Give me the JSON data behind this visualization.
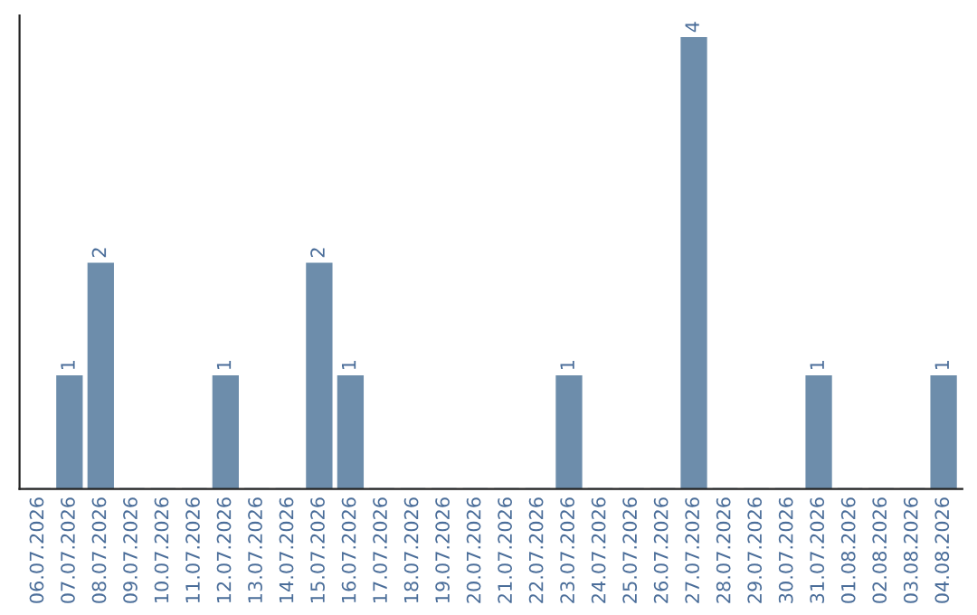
{
  "chart_data": {
    "type": "bar",
    "categories": [
      "06.07.2026",
      "07.07.2026",
      "08.07.2026",
      "09.07.2026",
      "10.07.2026",
      "11.07.2026",
      "12.07.2026",
      "13.07.2026",
      "14.07.2026",
      "15.07.2026",
      "16.07.2026",
      "17.07.2026",
      "18.07.2026",
      "19.07.2026",
      "20.07.2026",
      "21.07.2026",
      "22.07.2026",
      "23.07.2026",
      "24.07.2026",
      "25.07.2026",
      "26.07.2026",
      "27.07.2026",
      "28.07.2026",
      "29.07.2026",
      "30.07.2026",
      "31.07.2026",
      "01.08.2026",
      "02.08.2026",
      "03.08.2026",
      "04.08.2026"
    ],
    "values": [
      0,
      1,
      2,
      0,
      0,
      0,
      1,
      0,
      0,
      2,
      1,
      0,
      0,
      0,
      0,
      0,
      0,
      1,
      0,
      0,
      0,
      4,
      0,
      0,
      0,
      1,
      0,
      0,
      0,
      1
    ],
    "value_labels": [
      null,
      "1",
      "2",
      null,
      null,
      null,
      "1",
      null,
      null,
      "2",
      "1",
      null,
      null,
      null,
      null,
      null,
      null,
      "1",
      null,
      null,
      null,
      "4",
      null,
      null,
      null,
      "1",
      null,
      null,
      null,
      "1"
    ],
    "color": "#6d8dab",
    "ylim": [
      0,
      4.2
    ],
    "tick_labels": "x",
    "grid": false,
    "legend": false
  }
}
